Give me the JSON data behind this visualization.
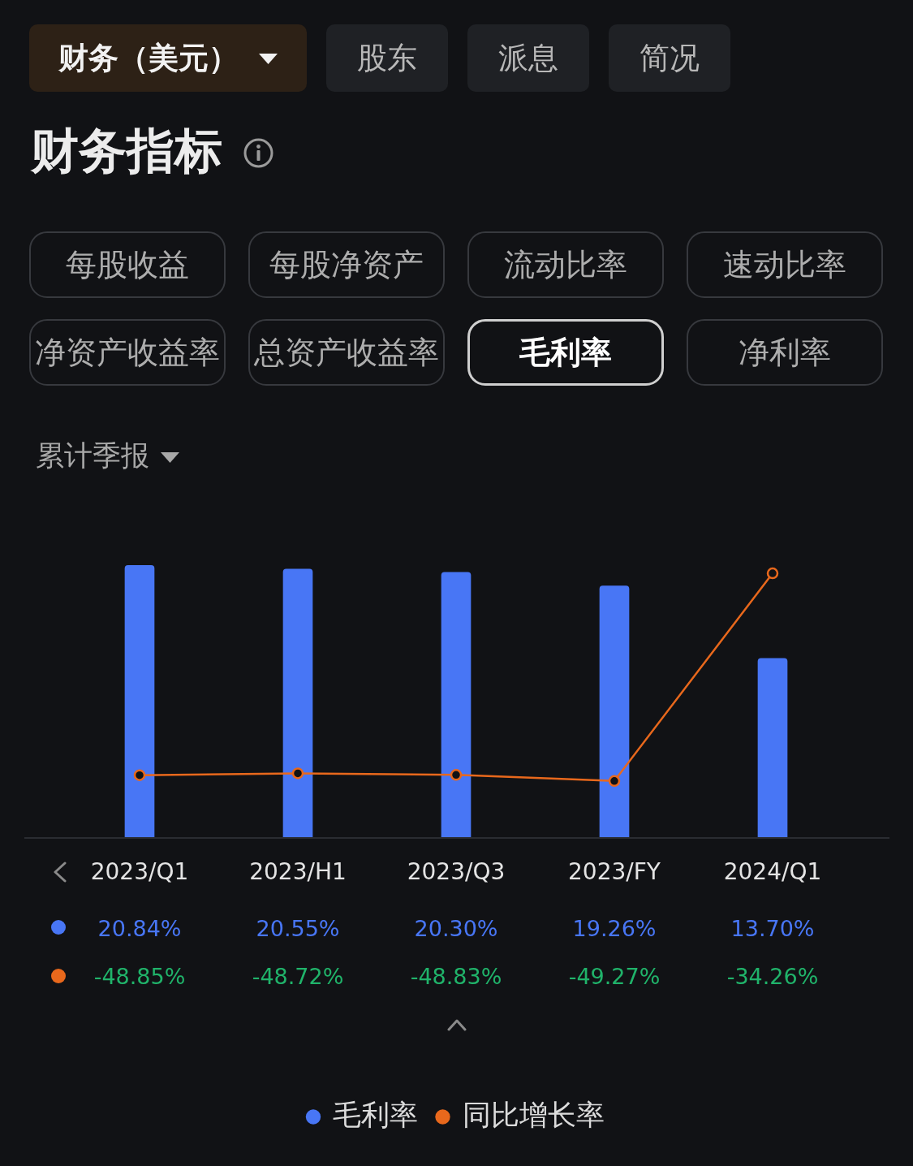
{
  "chart_data": {
    "type": "bar",
    "title": "财务指标",
    "annotations": [
      "财务（美元）",
      "股东",
      "派息",
      "简况",
      "每股收益",
      "每股净资产",
      "流动比率",
      "速动比率",
      "净资产收益率",
      "总资产收益率",
      "毛利率",
      "净利率",
      "累计季报"
    ],
    "categories": [
      "2023/Q1",
      "2023/H1",
      "2023/Q3",
      "2023/FY",
      "2024/Q1"
    ],
    "series": [
      {
        "name": "毛利率",
        "color": "#4876f5",
        "values": [
          20.84,
          20.55,
          20.3,
          19.26,
          13.7
        ],
        "value_labels": [
          "20.84%",
          "20.55%",
          "20.30%",
          "19.26%",
          "13.70%"
        ]
      },
      {
        "name": "同比增长率",
        "type": "line",
        "axis": "y2",
        "color": "#e8681c",
        "values": [
          -48.85,
          -48.72,
          -48.83,
          -49.27,
          -34.26
        ],
        "value_labels": [
          "-48.85%",
          "-48.72%",
          "-48.83%",
          "-49.27%",
          "-34.26%"
        ]
      }
    ],
    "tick_labels": "x",
    "legend": "bottom",
    "marker": "circle",
    "line_style": "solid"
  }
}
